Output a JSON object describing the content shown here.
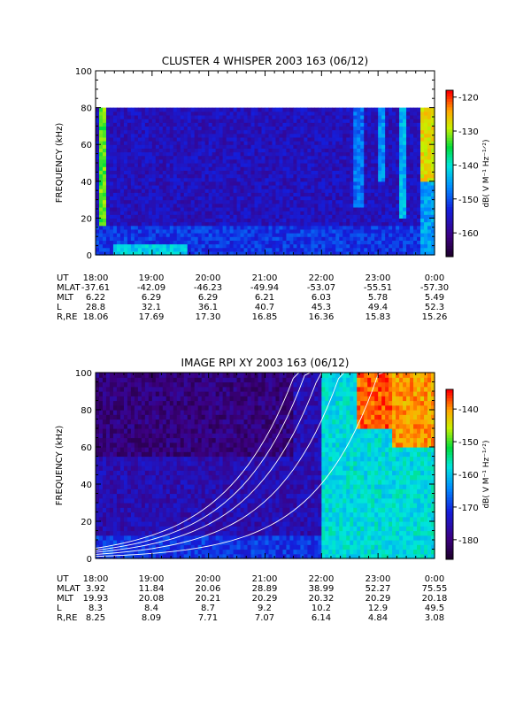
{
  "chart_data": [
    {
      "type": "heatmap",
      "title": "CLUSTER 4 WHISPER 2003 163 (06/12)",
      "ylabel": "FREQUENCY (kHz)",
      "ylim": [
        0,
        100
      ],
      "yticks": [
        "0",
        "20",
        "40",
        "60",
        "80",
        "100"
      ],
      "data_top_khz": 80,
      "colorbar": {
        "label": "dB( V M⁻¹ Hz⁻¹ᐟ²)",
        "range": [
          -167,
          -118
        ],
        "ticks": [
          -120,
          -130,
          -140,
          -150,
          -160
        ]
      },
      "ephemeris": {
        "row_labels": [
          "UT",
          "MLAT",
          "MLT",
          "L",
          "R,RE"
        ],
        "columns": [
          [
            "18:00",
            "-37.61",
            "6.22",
            "28.8",
            "18.06"
          ],
          [
            "19:00",
            "-42.09",
            "6.29",
            "32.1",
            "17.69"
          ],
          [
            "20:00",
            "-46.23",
            "6.29",
            "36.1",
            "17.30"
          ],
          [
            "21:00",
            "-49.94",
            "6.21",
            "40.7",
            "16.85"
          ],
          [
            "22:00",
            "-53.07",
            "6.03",
            "45.3",
            "16.36"
          ],
          [
            "23:00",
            "-55.51",
            "5.78",
            "49.4",
            "15.83"
          ],
          [
            "0:00",
            "-57.30",
            "5.49",
            "52.3",
            "15.26"
          ]
        ]
      },
      "features": [
        {
          "start_hr": 0.05,
          "end_hr": 0.18,
          "from_khz": 0,
          "to_khz": 80,
          "level_db": -132
        },
        {
          "start_hr": 0.0,
          "end_hr": 6.0,
          "from_khz": 0,
          "to_khz": 15,
          "level_db": -152
        },
        {
          "start_hr": 0.3,
          "end_hr": 1.6,
          "from_khz": 0,
          "to_khz": 6,
          "level_db": -142
        },
        {
          "start_hr": 4.55,
          "end_hr": 4.75,
          "from_khz": 25,
          "to_khz": 80,
          "level_db": -148
        },
        {
          "start_hr": 4.95,
          "end_hr": 5.1,
          "from_khz": 40,
          "to_khz": 80,
          "level_db": -146
        },
        {
          "start_hr": 5.35,
          "end_hr": 5.5,
          "from_khz": 20,
          "to_khz": 80,
          "level_db": -144
        },
        {
          "start_hr": 5.75,
          "end_hr": 5.95,
          "from_khz": 40,
          "to_khz": 80,
          "level_db": -127
        },
        {
          "start_hr": 5.72,
          "end_hr": 6.0,
          "from_khz": 0,
          "to_khz": 40,
          "level_db": -145
        }
      ]
    },
    {
      "type": "heatmap",
      "title": "IMAGE RPI XY 2003 163 (06/12)",
      "ylabel": "FREQUENCY (kHz)",
      "ylim": [
        0,
        100
      ],
      "yticks": [
        "0",
        "20",
        "40",
        "60",
        "80",
        "100"
      ],
      "data_top_khz": 100,
      "colorbar": {
        "label": "dB( V M⁻¹ Hz⁻¹ᐟ²)",
        "range": [
          -186,
          -134
        ],
        "ticks": [
          -140,
          -150,
          -160,
          -170,
          -180
        ]
      },
      "ephemeris": {
        "row_labels": [
          "UT",
          "MLAT",
          "MLT",
          "L",
          "R,RE"
        ],
        "columns": [
          [
            "18:00",
            "3.92",
            "19.93",
            "8.3",
            "8.25"
          ],
          [
            "19:00",
            "11.84",
            "20.08",
            "8.4",
            "8.09"
          ],
          [
            "20:00",
            "20.06",
            "20.21",
            "8.7",
            "7.71"
          ],
          [
            "21:00",
            "28.89",
            "20.29",
            "9.2",
            "7.07"
          ],
          [
            "22:00",
            "38.99",
            "20.32",
            "10.2",
            "6.14"
          ],
          [
            "23:00",
            "52.27",
            "20.29",
            "12.9",
            "4.84"
          ],
          [
            "0:00",
            "75.55",
            "20.18",
            "49.5",
            "3.08"
          ]
        ]
      },
      "features": [
        {
          "start_hr": 0.0,
          "end_hr": 3.5,
          "from_khz": 55,
          "to_khz": 100,
          "level_db": -180
        },
        {
          "start_hr": 0.0,
          "end_hr": 6.0,
          "from_khz": 0,
          "to_khz": 12,
          "level_db": -170
        },
        {
          "start_hr": 4.0,
          "end_hr": 6.0,
          "from_khz": 0,
          "to_khz": 100,
          "level_db": -158
        },
        {
          "start_hr": 4.6,
          "end_hr": 6.0,
          "from_khz": 70,
          "to_khz": 100,
          "level_db": -137
        },
        {
          "start_hr": 5.2,
          "end_hr": 6.0,
          "from_khz": 60,
          "to_khz": 100,
          "level_db": -140
        }
      ],
      "white_curves": [
        {
          "base_khz": 1.1,
          "growth": 0.9
        },
        {
          "base_khz": 2.2,
          "growth": 0.88
        },
        {
          "base_khz": 3.3,
          "growth": 0.86
        },
        {
          "base_khz": 4.4,
          "growth": 0.84
        },
        {
          "base_khz": 5.5,
          "growth": 0.82
        }
      ]
    }
  ]
}
